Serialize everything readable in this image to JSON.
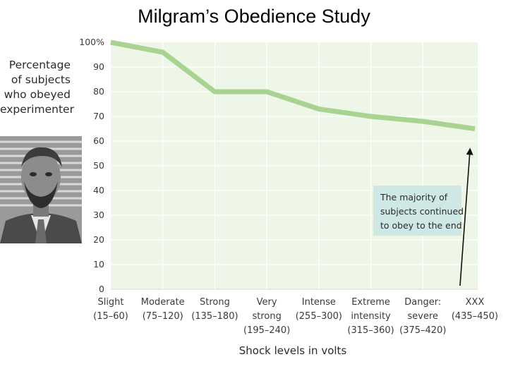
{
  "slide_title": "Milgram’s Obedience Study",
  "portrait_icon": "portrait-of-stanley-milgram",
  "colors": {
    "line": "#a9d391",
    "plot_bg": "#eef6e8",
    "grid": "#ffffff",
    "note_bg": "#cfe8e6",
    "axis_text": "#3a3a3a"
  },
  "chart_data": {
    "type": "line",
    "title": "",
    "ylabel": "Percentage\nof subjects\nwho obeyed\nexperimenter",
    "xlabel": "Shock levels in volts",
    "ylim": [
      0,
      100
    ],
    "y_ticks": [
      "0",
      "10",
      "20",
      "30",
      "40",
      "50",
      "60",
      "70",
      "80",
      "90",
      "100%"
    ],
    "grid": true,
    "categories": [
      [
        "Slight",
        "(15–60)"
      ],
      [
        "Moderate",
        "(75–120)"
      ],
      [
        "Strong",
        "(135–180)"
      ],
      [
        "Very",
        "strong",
        "(195–240)"
      ],
      [
        "Intense",
        "(255–300)"
      ],
      [
        "Extreme",
        "intensity",
        "(315–360)"
      ],
      [
        "Danger:",
        "severe",
        "(375–420)"
      ],
      [
        "XXX",
        "(435–450)"
      ]
    ],
    "series": [
      {
        "values": [
          100,
          96,
          80,
          80,
          73,
          70,
          68,
          65
        ]
      }
    ],
    "annotation": {
      "text": [
        "The majority of",
        "subjects continued",
        "to obey to the end"
      ],
      "points_to": "XXX"
    }
  }
}
